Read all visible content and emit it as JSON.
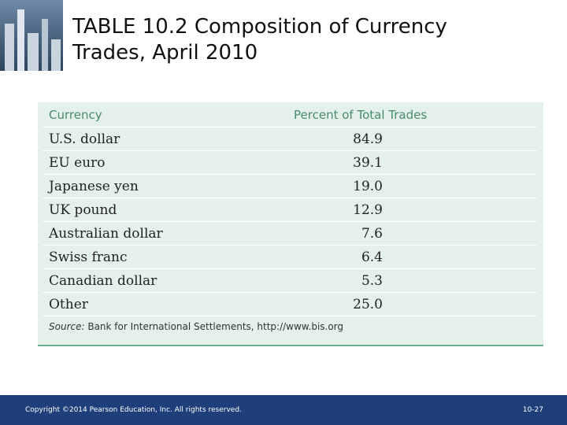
{
  "title": {
    "line1": "TABLE 10.2  Composition of Currency",
    "line2": "Trades, April 2010"
  },
  "table": {
    "headers": [
      "Currency",
      "Percent of Total Trades"
    ],
    "rows": [
      {
        "currency": "U.S. dollar",
        "percent": "84.9"
      },
      {
        "currency": "EU euro",
        "percent": "39.1"
      },
      {
        "currency": "Japanese yen",
        "percent": "19.0"
      },
      {
        "currency": "UK pound",
        "percent": "12.9"
      },
      {
        "currency": "Australian dollar",
        "percent": "7.6"
      },
      {
        "currency": "Swiss franc",
        "percent": "6.4"
      },
      {
        "currency": "Canadian dollar",
        "percent": "5.3"
      },
      {
        "currency": "Other",
        "percent": "25.0"
      }
    ],
    "source_label": "Source:",
    "source_text": " Bank for International Settlements, http://www.bis.org"
  },
  "footer": {
    "copyright": "Copyright ©2014 Pearson Education, Inc. All rights reserved.",
    "page_number": "10-27"
  },
  "colors": {
    "footer_bg": "#1f3f7a",
    "table_bg": "#e3f1ea",
    "header_text": "#4a8a70"
  }
}
